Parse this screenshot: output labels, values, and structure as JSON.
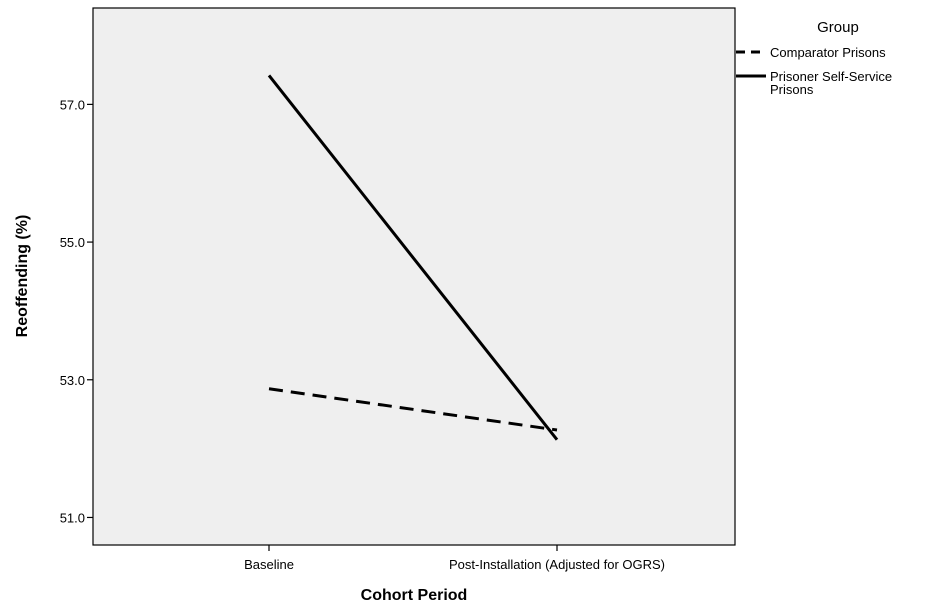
{
  "chart_data": {
    "type": "line",
    "title": "",
    "xlabel": "Cohort Period",
    "ylabel": "Reoffending (%)",
    "categories": [
      "Baseline",
      "Post-Installation (Adjusted for OGRS)"
    ],
    "yticks": [
      51.0,
      53.0,
      55.0,
      57.0
    ],
    "ytick_labels": [
      "51.0",
      "53.0",
      "55.0",
      "57.0"
    ],
    "ylim": [
      50.6,
      58.4
    ],
    "grid": false,
    "legend": {
      "title": "Group",
      "placement": "right",
      "entries": [
        {
          "label_lines": [
            "Comparator Prisons"
          ],
          "style": "dashed"
        },
        {
          "label_lines": [
            "Prisoner Self-Service",
            "Prisons"
          ],
          "style": "solid"
        }
      ]
    },
    "series": [
      {
        "name": "Comparator Prisons",
        "values": [
          52.87,
          52.27
        ],
        "style": "dashed",
        "color": "#000000"
      },
      {
        "name": "Prisoner Self-Service Prisons",
        "values": [
          57.42,
          52.13
        ],
        "style": "solid",
        "color": "#000000"
      }
    ]
  }
}
